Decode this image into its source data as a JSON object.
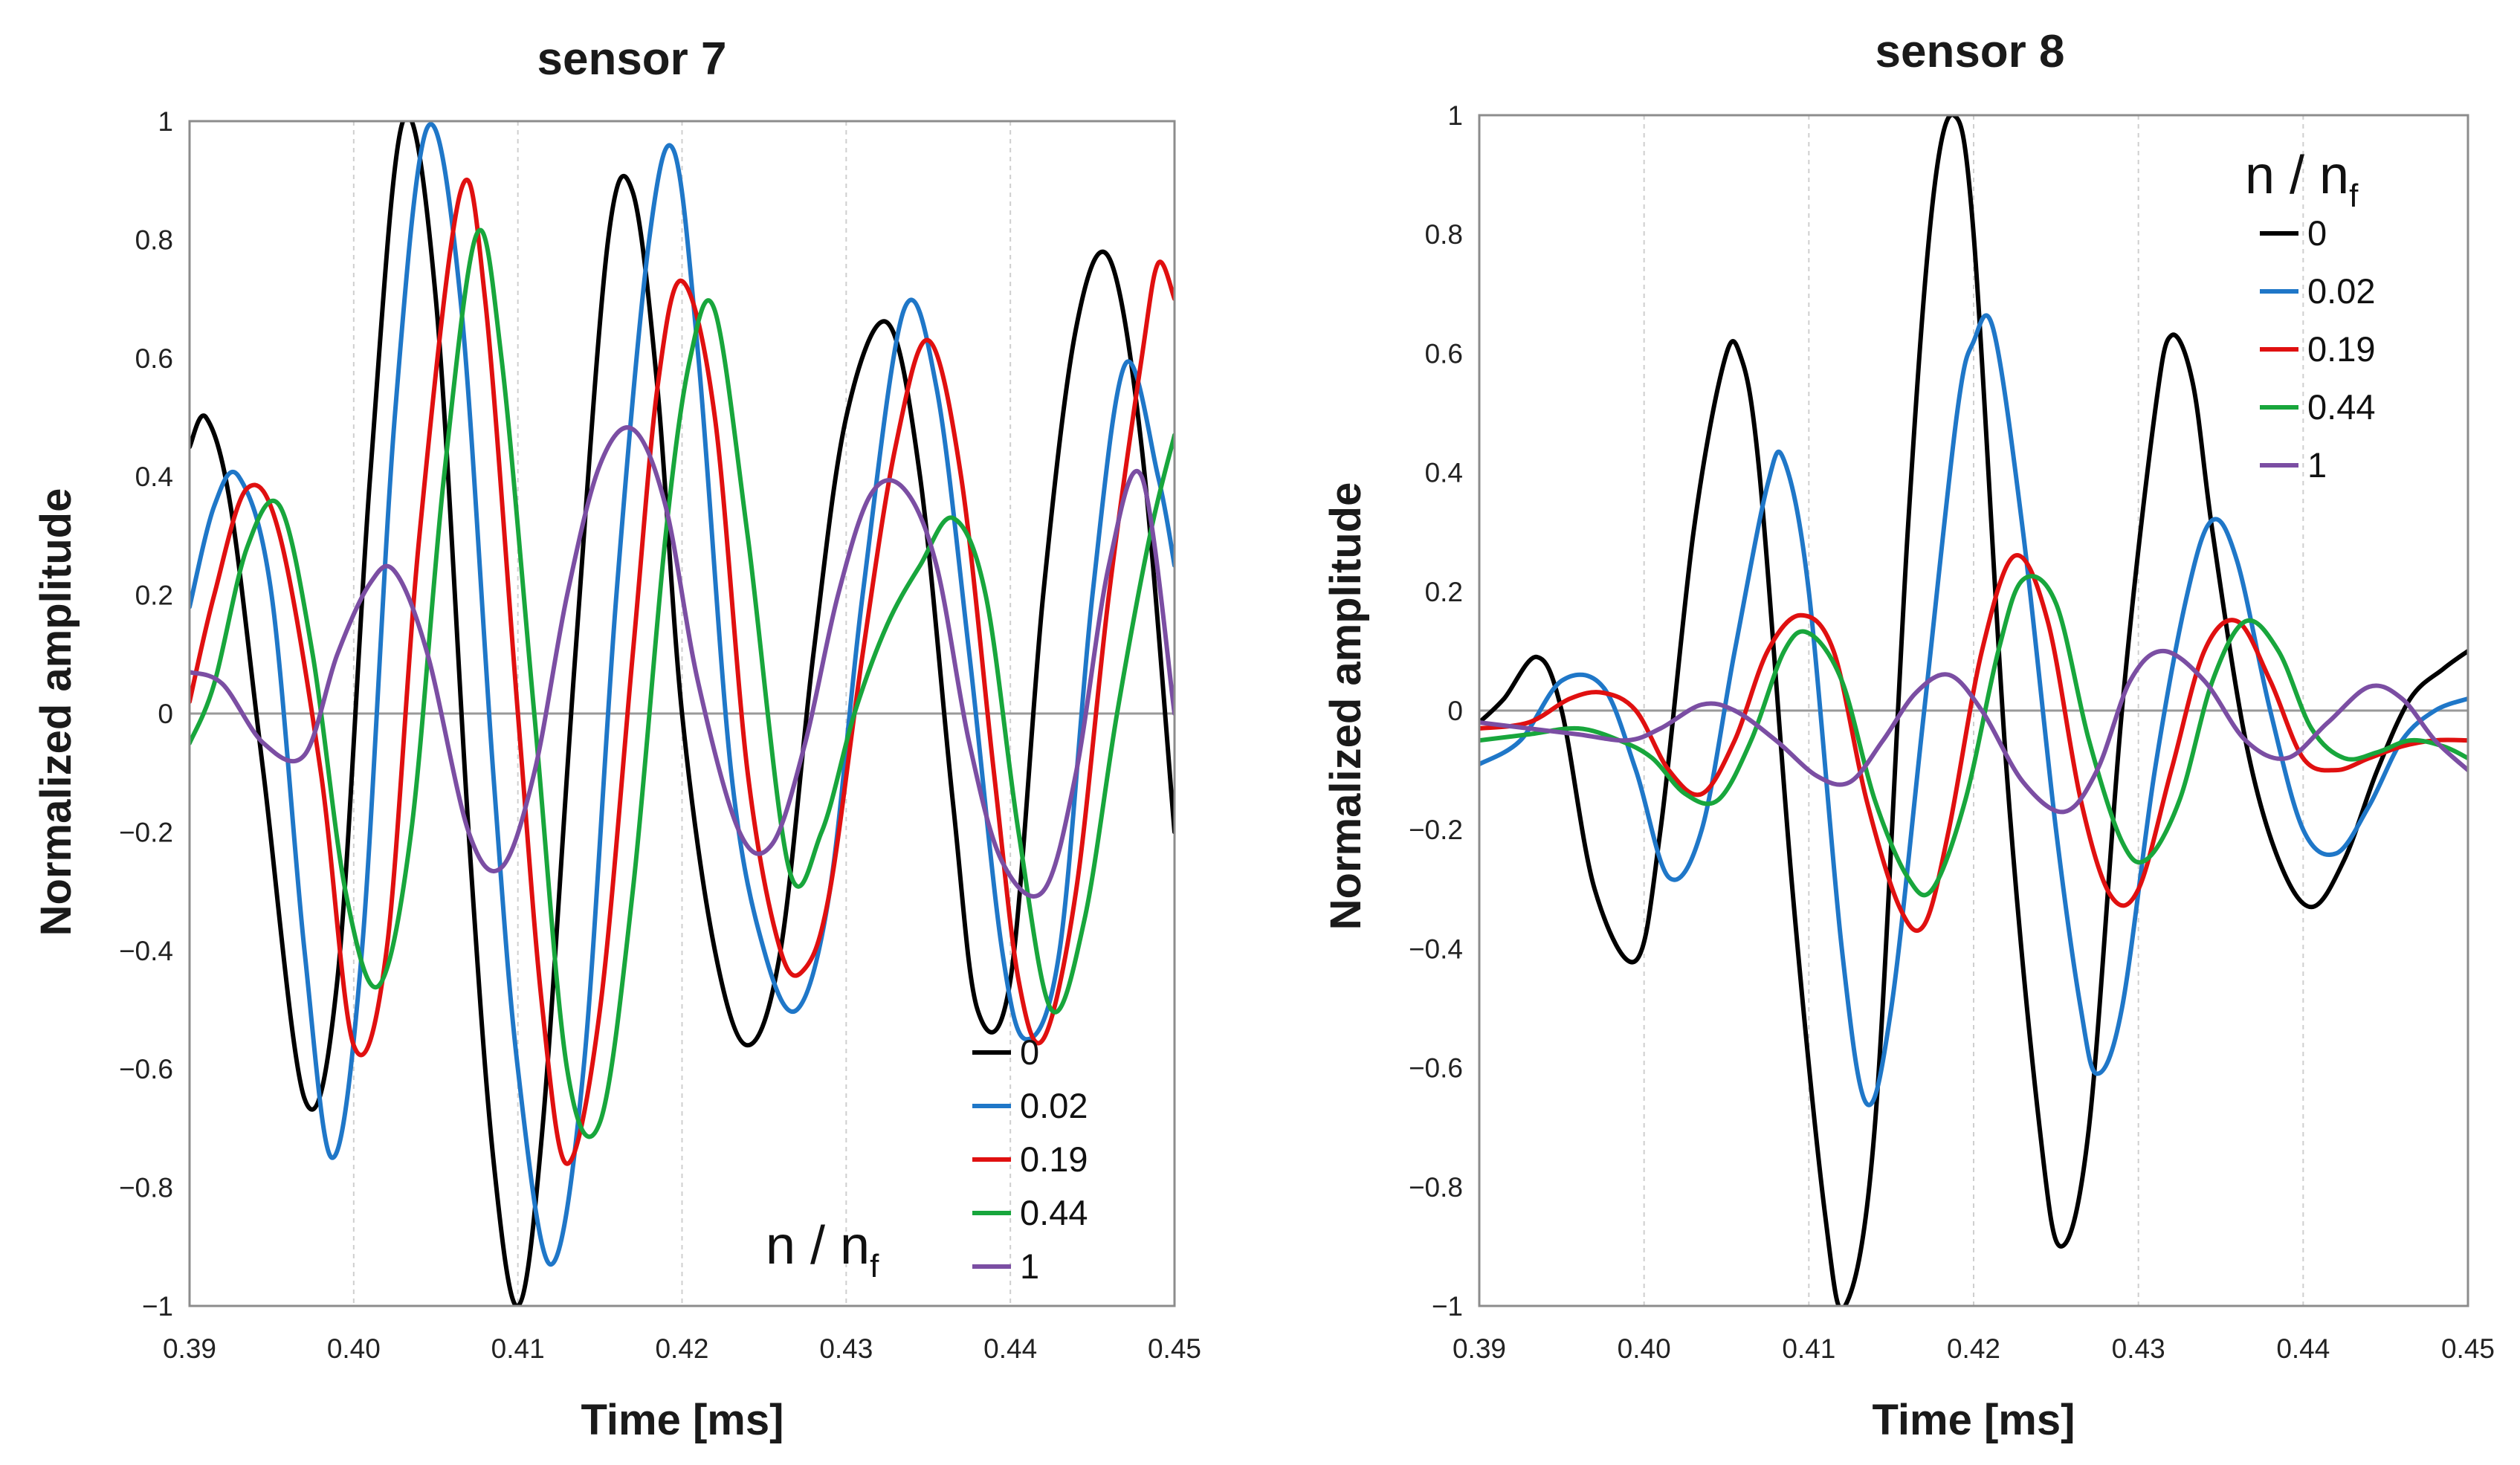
{
  "charts": [
    {
      "id": "sensor7",
      "title": "sensor 7",
      "xlabel": "Time [ms]",
      "ylabel": "Normalized amplitude",
      "xlim": [
        0.39,
        0.45
      ],
      "ylim": [
        -1,
        1
      ],
      "x_ticks": [
        0.39,
        0.4,
        0.41,
        0.42,
        0.43,
        0.44,
        0.45
      ],
      "x_tick_labels": [
        "0.39",
        "0.40",
        "0.41",
        "0.42",
        "0.43",
        "0.44",
        "0.45"
      ],
      "y_ticks": [
        1,
        0.8,
        0.6,
        0.4,
        0.2,
        0,
        -0.2,
        -0.4,
        -0.6,
        -0.8,
        -1
      ],
      "y_tick_labels": [
        "1",
        "0.8",
        "0.6",
        "0.4",
        "0.2",
        "0",
        "−0.2",
        "−0.4",
        "−0.6",
        "−0.8",
        "−1"
      ],
      "legend": {
        "title_main": "n / n",
        "title_sub": "f",
        "position": "bottom-right"
      }
    },
    {
      "id": "sensor8",
      "title": "sensor 8",
      "xlabel": "Time [ms]",
      "ylabel": "Normalized amplitude",
      "xlim": [
        0.39,
        0.45
      ],
      "ylim": [
        -1,
        1
      ],
      "x_ticks": [
        0.39,
        0.4,
        0.41,
        0.42,
        0.43,
        0.44,
        0.45
      ],
      "x_tick_labels": [
        "0.39",
        "0.40",
        "0.41",
        "0.42",
        "0.43",
        "0.44",
        "0.45"
      ],
      "y_ticks": [
        1,
        0.8,
        0.6,
        0.4,
        0.2,
        0,
        -0.2,
        -0.4,
        -0.6,
        -0.8,
        -1
      ],
      "y_tick_labels": [
        "1",
        "0.8",
        "0.6",
        "0.4",
        "0.2",
        "0",
        "−0.2",
        "−0.4",
        "−0.6",
        "−0.8",
        "−1"
      ],
      "legend": {
        "title_main": "n / n",
        "title_sub": "f",
        "position": "top-right"
      }
    }
  ],
  "chart_data": [
    {
      "type": "line",
      "title": "sensor 7",
      "xlabel": "Time [ms]",
      "ylabel": "Normalized amplitude",
      "xlim": [
        0.39,
        0.45
      ],
      "ylim": [
        -1,
        1
      ],
      "grid": "vertical dashed",
      "series": [
        {
          "name": "0",
          "color": "#000000",
          "x": [
            0.39,
            0.391,
            0.3925,
            0.3945,
            0.397,
            0.399,
            0.401,
            0.403,
            0.405,
            0.407,
            0.4085,
            0.41,
            0.4115,
            0.4135,
            0.4155,
            0.417,
            0.4185,
            0.42,
            0.422,
            0.424,
            0.426,
            0.428,
            0.43,
            0.4325,
            0.4345,
            0.4365,
            0.438,
            0.44,
            0.442,
            0.444,
            0.446,
            0.448,
            0.45
          ],
          "y": [
            0.45,
            0.5,
            0.35,
            -0.1,
            -0.65,
            -0.45,
            0.4,
            1.0,
            0.7,
            -0.2,
            -0.75,
            -1.0,
            -0.7,
            0.1,
            0.8,
            0.88,
            0.55,
            0.0,
            -0.4,
            -0.56,
            -0.4,
            0.1,
            0.5,
            0.66,
            0.4,
            -0.15,
            -0.5,
            -0.45,
            0.2,
            0.65,
            0.77,
            0.45,
            -0.2
          ]
        },
        {
          "name": "0.02",
          "color": "#1f77c8",
          "x": [
            0.39,
            0.3915,
            0.393,
            0.395,
            0.397,
            0.3987,
            0.4005,
            0.4025,
            0.4045,
            0.4065,
            0.4085,
            0.41,
            0.412,
            0.414,
            0.416,
            0.418,
            0.4195,
            0.421,
            0.423,
            0.425,
            0.427,
            0.429,
            0.431,
            0.4335,
            0.4355,
            0.4375,
            0.4395,
            0.441,
            0.443,
            0.445,
            0.447,
            0.449,
            0.45
          ],
          "y": [
            0.18,
            0.35,
            0.4,
            0.2,
            -0.4,
            -0.75,
            -0.4,
            0.5,
            0.99,
            0.7,
            -0.1,
            -0.6,
            -0.93,
            -0.6,
            0.2,
            0.8,
            0.95,
            0.6,
            -0.1,
            -0.4,
            -0.5,
            -0.3,
            0.2,
            0.68,
            0.55,
            0.1,
            -0.4,
            -0.55,
            -0.4,
            0.2,
            0.59,
            0.4,
            0.25
          ]
        },
        {
          "name": "0.19",
          "color": "#e01010",
          "x": [
            0.39,
            0.3915,
            0.3935,
            0.3955,
            0.398,
            0.4,
            0.402,
            0.404,
            0.4065,
            0.408,
            0.41,
            0.4115,
            0.413,
            0.415,
            0.417,
            0.4185,
            0.42,
            0.422,
            0.424,
            0.426,
            0.4275,
            0.429,
            0.431,
            0.433,
            0.435,
            0.437,
            0.439,
            0.4405,
            0.442,
            0.444,
            0.446,
            0.448,
            0.449,
            0.45
          ],
          "y": [
            0.02,
            0.2,
            0.38,
            0.3,
            -0.1,
            -0.56,
            -0.4,
            0.3,
            0.88,
            0.7,
            0.0,
            -0.5,
            -0.76,
            -0.5,
            0.1,
            0.55,
            0.73,
            0.5,
            -0.1,
            -0.4,
            -0.43,
            -0.3,
            0.1,
            0.45,
            0.63,
            0.4,
            -0.1,
            -0.45,
            -0.55,
            -0.3,
            0.2,
            0.6,
            0.76,
            0.7
          ]
        },
        {
          "name": "0.44",
          "color": "#18a63c",
          "x": [
            0.39,
            0.3915,
            0.3935,
            0.3955,
            0.3975,
            0.3995,
            0.4015,
            0.4035,
            0.4055,
            0.4075,
            0.409,
            0.411,
            0.413,
            0.415,
            0.417,
            0.419,
            0.4205,
            0.422,
            0.424,
            0.4265,
            0.4285,
            0.4305,
            0.4325,
            0.4345,
            0.4365,
            0.4385,
            0.4405,
            0.4425,
            0.4445,
            0.4465,
            0.4485,
            0.45
          ],
          "y": [
            -0.05,
            0.05,
            0.28,
            0.35,
            0.1,
            -0.3,
            -0.46,
            -0.2,
            0.4,
            0.81,
            0.6,
            0.0,
            -0.6,
            -0.69,
            -0.3,
            0.3,
            0.6,
            0.68,
            0.3,
            -0.26,
            -0.2,
            0.0,
            0.15,
            0.25,
            0.33,
            0.2,
            -0.2,
            -0.5,
            -0.35,
            0.0,
            0.3,
            0.47
          ]
        },
        {
          "name": "1",
          "color": "#7b4ea3",
          "x": [
            0.39,
            0.392,
            0.3945,
            0.397,
            0.399,
            0.401,
            0.4025,
            0.4045,
            0.407,
            0.409,
            0.411,
            0.413,
            0.415,
            0.417,
            0.419,
            0.421,
            0.4235,
            0.4255,
            0.4275,
            0.4295,
            0.4315,
            0.4335,
            0.4355,
            0.4375,
            0.4395,
            0.442,
            0.444,
            0.446,
            0.448,
            0.45
          ],
          "y": [
            0.07,
            0.05,
            -0.05,
            -0.07,
            0.1,
            0.22,
            0.24,
            0.1,
            -0.2,
            -0.26,
            -0.1,
            0.2,
            0.42,
            0.48,
            0.35,
            0.05,
            -0.2,
            -0.22,
            -0.05,
            0.2,
            0.37,
            0.38,
            0.25,
            -0.05,
            -0.25,
            -0.3,
            -0.1,
            0.25,
            0.4,
            0.0
          ]
        }
      ]
    },
    {
      "type": "line",
      "title": "sensor 8",
      "xlabel": "Time [ms]",
      "ylabel": "Normalized amplitude",
      "xlim": [
        0.39,
        0.45
      ],
      "ylim": [
        -1,
        1
      ],
      "grid": "vertical dashed",
      "series": [
        {
          "name": "0",
          "color": "#000000",
          "x": [
            0.39,
            0.3915,
            0.3935,
            0.395,
            0.397,
            0.3995,
            0.401,
            0.403,
            0.4048,
            0.4058,
            0.407,
            0.409,
            0.411,
            0.4122,
            0.414,
            0.416,
            0.4175,
            0.4188,
            0.42,
            0.422,
            0.424,
            0.4253,
            0.427,
            0.429,
            0.431,
            0.432,
            0.4333,
            0.4345,
            0.4365,
            0.4385,
            0.4405,
            0.4425,
            0.4445,
            0.4465,
            0.4485,
            0.45
          ],
          "y": [
            -0.02,
            0.02,
            0.09,
            0.0,
            -0.3,
            -0.42,
            -0.2,
            0.3,
            0.58,
            0.6,
            0.4,
            -0.3,
            -0.85,
            -1.0,
            -0.7,
            0.3,
            0.85,
            1.0,
            0.8,
            -0.1,
            -0.7,
            -0.9,
            -0.7,
            0.0,
            0.5,
            0.63,
            0.55,
            0.3,
            -0.05,
            -0.25,
            -0.33,
            -0.25,
            -0.1,
            0.02,
            0.07,
            0.1
          ]
        },
        {
          "name": "0.02",
          "color": "#1f77c8",
          "x": [
            0.39,
            0.3925,
            0.395,
            0.3975,
            0.3995,
            0.4015,
            0.4035,
            0.4055,
            0.4075,
            0.4085,
            0.41,
            0.412,
            0.4135,
            0.415,
            0.417,
            0.419,
            0.42,
            0.4212,
            0.423,
            0.425,
            0.4265,
            0.4275,
            0.429,
            0.431,
            0.433,
            0.4345,
            0.436,
            0.438,
            0.44,
            0.442,
            0.444,
            0.446,
            0.448,
            0.45
          ],
          "y": [
            -0.09,
            -0.05,
            0.05,
            0.04,
            -0.1,
            -0.28,
            -0.2,
            0.1,
            0.38,
            0.42,
            0.2,
            -0.4,
            -0.66,
            -0.5,
            0.0,
            0.5,
            0.62,
            0.64,
            0.3,
            -0.2,
            -0.5,
            -0.61,
            -0.5,
            -0.1,
            0.2,
            0.32,
            0.25,
            0.0,
            -0.2,
            -0.24,
            -0.16,
            -0.05,
            0.0,
            0.02
          ]
        },
        {
          "name": "0.19",
          "color": "#e01010",
          "x": [
            0.39,
            0.393,
            0.3955,
            0.3975,
            0.3995,
            0.4015,
            0.4035,
            0.4055,
            0.4075,
            0.4095,
            0.4115,
            0.4135,
            0.4155,
            0.417,
            0.4185,
            0.4205,
            0.4225,
            0.4245,
            0.4265,
            0.4283,
            0.43,
            0.432,
            0.434,
            0.436,
            0.438,
            0.44,
            0.442,
            0.444,
            0.446,
            0.448,
            0.45
          ],
          "y": [
            -0.03,
            -0.02,
            0.02,
            0.03,
            0.0,
            -0.1,
            -0.14,
            -0.05,
            0.1,
            0.16,
            0.1,
            -0.15,
            -0.33,
            -0.36,
            -0.2,
            0.1,
            0.26,
            0.15,
            -0.15,
            -0.31,
            -0.3,
            -0.1,
            0.1,
            0.15,
            0.05,
            -0.08,
            -0.1,
            -0.08,
            -0.06,
            -0.05,
            -0.05
          ]
        },
        {
          "name": "0.44",
          "color": "#18a63c",
          "x": [
            0.39,
            0.393,
            0.396,
            0.3985,
            0.4005,
            0.4025,
            0.4045,
            0.4065,
            0.4085,
            0.41,
            0.412,
            0.414,
            0.416,
            0.4175,
            0.4195,
            0.4215,
            0.423,
            0.425,
            0.427,
            0.429,
            0.4305,
            0.4325,
            0.4345,
            0.4365,
            0.4385,
            0.4405,
            0.4425,
            0.4445,
            0.4465,
            0.4485,
            0.45
          ],
          "y": [
            -0.05,
            -0.04,
            -0.03,
            -0.05,
            -0.08,
            -0.14,
            -0.15,
            -0.05,
            0.1,
            0.13,
            0.05,
            -0.15,
            -0.28,
            -0.3,
            -0.15,
            0.1,
            0.22,
            0.18,
            -0.05,
            -0.22,
            -0.25,
            -0.15,
            0.05,
            0.15,
            0.1,
            -0.03,
            -0.08,
            -0.07,
            -0.05,
            -0.06,
            -0.08
          ]
        },
        {
          "name": "1",
          "color": "#7b4ea3",
          "x": [
            0.39,
            0.393,
            0.396,
            0.399,
            0.401,
            0.4035,
            0.4055,
            0.408,
            0.4105,
            0.4125,
            0.4145,
            0.4165,
            0.4185,
            0.4205,
            0.423,
            0.4255,
            0.4275,
            0.4295,
            0.4315,
            0.434,
            0.4365,
            0.439,
            0.4415,
            0.444,
            0.446,
            0.448,
            0.45
          ],
          "y": [
            -0.02,
            -0.03,
            -0.04,
            -0.05,
            -0.03,
            0.01,
            0.0,
            -0.05,
            -0.11,
            -0.12,
            -0.05,
            0.03,
            0.06,
            0.0,
            -0.12,
            -0.17,
            -0.1,
            0.05,
            0.1,
            0.05,
            -0.05,
            -0.08,
            -0.02,
            0.04,
            0.02,
            -0.05,
            -0.1
          ]
        }
      ]
    }
  ]
}
